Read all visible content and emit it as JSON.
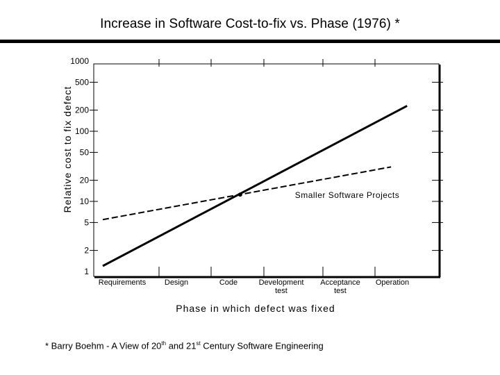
{
  "title": "Increase in Software Cost-to-fix vs. Phase (1976) *",
  "footnote": {
    "prefix": "* Barry Boehm - A View of 20",
    "sup1": "th",
    "middle": " and 21",
    "sup2": "st",
    "suffix": " Century Software Engineering"
  },
  "chart_data": {
    "type": "line",
    "title": "Increase in Software Cost-to-fix vs. Phase (1976) *",
    "xlabel": "Phase in which defect was fixed",
    "ylabel": "Relative cost to fix defect",
    "yscale": "log",
    "ylim": [
      1,
      1000
    ],
    "yticks": [
      1,
      2,
      5,
      10,
      20,
      50,
      100,
      200,
      500,
      1000
    ],
    "ytick_labels": [
      "1",
      "2",
      "5",
      "10",
      "20",
      "50",
      "100",
      "200",
      "500",
      "1000"
    ],
    "categories": [
      [
        "Requirements"
      ],
      [
        "Design"
      ],
      [
        "Code"
      ],
      [
        "Development",
        "test"
      ],
      [
        "Acceptance",
        "test"
      ],
      [
        "Operation"
      ]
    ],
    "series": [
      {
        "name": "",
        "style": "solid",
        "color": "#000000",
        "points": [
          {
            "x": 0,
            "y": 1.2
          },
          {
            "x": 5.6,
            "y": 230
          }
        ]
      },
      {
        "name": "",
        "style": "dashed",
        "color": "#000000",
        "points": [
          {
            "x": 0,
            "y": 5.5
          },
          {
            "x": 5.3,
            "y": 31
          }
        ]
      }
    ],
    "marker": {
      "x": 2.55,
      "y": 12.5
    },
    "annotations": [
      {
        "text": "Smaller Software Projects",
        "x": 4.2,
        "y": 12
      }
    ],
    "grid": false,
    "legend": "none"
  }
}
